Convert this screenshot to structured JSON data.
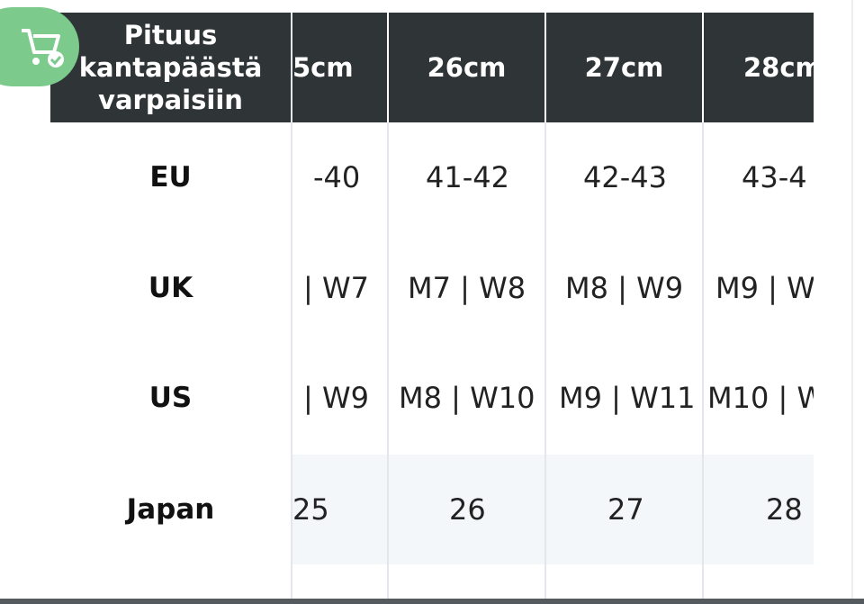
{
  "table": {
    "header": [
      "Pituus kantapäästä varpaisiin",
      "5cm",
      "26cm",
      "27cm",
      "28cm"
    ],
    "rows": [
      [
        "EU",
        "-40",
        "41-42",
        "42-43",
        "43-4"
      ],
      [
        "UK",
        "| W7",
        "M7 | W8",
        "M8 | W9",
        "M9 | W"
      ],
      [
        "US",
        "| W9",
        "M8 | W10",
        "M9 | W11",
        "M10 | W"
      ],
      [
        "Japan",
        "25",
        "26",
        "27",
        "28"
      ]
    ]
  }
}
